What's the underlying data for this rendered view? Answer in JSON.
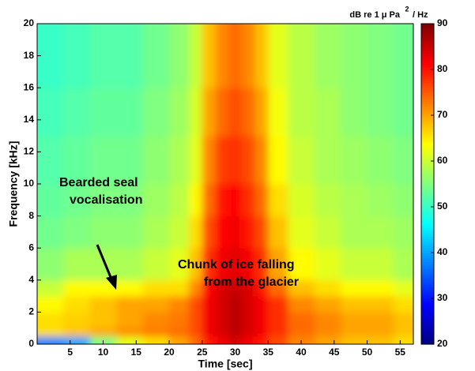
{
  "chart_data": {
    "type": "spectrogram",
    "xlabel": "Time [sec]",
    "ylabel": "Frequency [kHz]",
    "colorbar_label": [
      "dB re 1 μ Pa",
      "2",
      "/ Hz"
    ],
    "annotations": [
      [
        "Bearded seal",
        "vocalisation"
      ],
      [
        "Chunk of ice falling",
        "from the glacier"
      ]
    ],
    "xlim": [
      0,
      57
    ],
    "xticks": [
      5,
      10,
      15,
      20,
      25,
      30,
      35,
      40,
      45,
      50,
      55
    ],
    "ylim": [
      0,
      20
    ],
    "yticks": [
      0,
      2,
      4,
      6,
      8,
      10,
      12,
      14,
      16,
      18,
      20
    ],
    "clim": [
      20,
      90
    ],
    "cticks": [
      20,
      30,
      40,
      50,
      60,
      70,
      80,
      90
    ],
    "colormap": "jet",
    "xbins": [
      0,
      4,
      8,
      12,
      16,
      20,
      23,
      25,
      27,
      29,
      31,
      33,
      35,
      38,
      42,
      46,
      50,
      54,
      57
    ],
    "ybins": [
      0,
      0.5,
      1,
      2,
      3,
      4,
      6,
      8,
      10,
      13,
      16,
      20
    ],
    "z": [
      [
        38,
        40,
        55,
        62,
        66,
        70,
        74,
        80,
        82,
        84,
        82,
        80,
        76,
        72,
        70,
        68,
        68,
        66
      ],
      [
        66,
        68,
        70,
        72,
        73,
        74,
        76,
        82,
        84,
        86,
        84,
        82,
        78,
        74,
        72,
        70,
        70,
        68
      ],
      [
        66,
        67,
        68,
        70,
        72,
        73,
        76,
        82,
        84,
        86,
        84,
        82,
        78,
        74,
        72,
        70,
        70,
        68
      ],
      [
        64,
        66,
        68,
        70,
        70,
        72,
        76,
        82,
        84,
        86,
        84,
        82,
        78,
        72,
        70,
        68,
        68,
        66
      ],
      [
        60,
        64,
        64,
        64,
        66,
        66,
        72,
        81,
        84,
        85,
        84,
        80,
        74,
        68,
        66,
        64,
        64,
        62
      ],
      [
        56,
        58,
        58,
        58,
        60,
        62,
        68,
        78,
        82,
        83,
        82,
        78,
        70,
        64,
        62,
        60,
        60,
        58
      ],
      [
        54,
        55,
        56,
        56,
        58,
        60,
        66,
        76,
        81,
        82,
        80,
        76,
        68,
        62,
        60,
        58,
        58,
        57
      ],
      [
        53,
        54,
        55,
        55,
        57,
        59,
        64,
        74,
        80,
        81,
        78,
        74,
        66,
        61,
        59,
        58,
        57,
        56
      ],
      [
        52,
        53,
        54,
        54,
        56,
        58,
        62,
        72,
        77,
        78,
        76,
        72,
        64,
        60,
        58,
        57,
        56,
        55
      ],
      [
        51,
        52,
        53,
        53,
        55,
        57,
        61,
        70,
        74,
        76,
        74,
        70,
        63,
        59,
        58,
        56,
        55,
        54
      ],
      [
        50,
        51,
        52,
        52,
        54,
        56,
        60,
        68,
        72,
        74,
        72,
        68,
        62,
        59,
        57,
        56,
        55,
        54
      ]
    ]
  }
}
